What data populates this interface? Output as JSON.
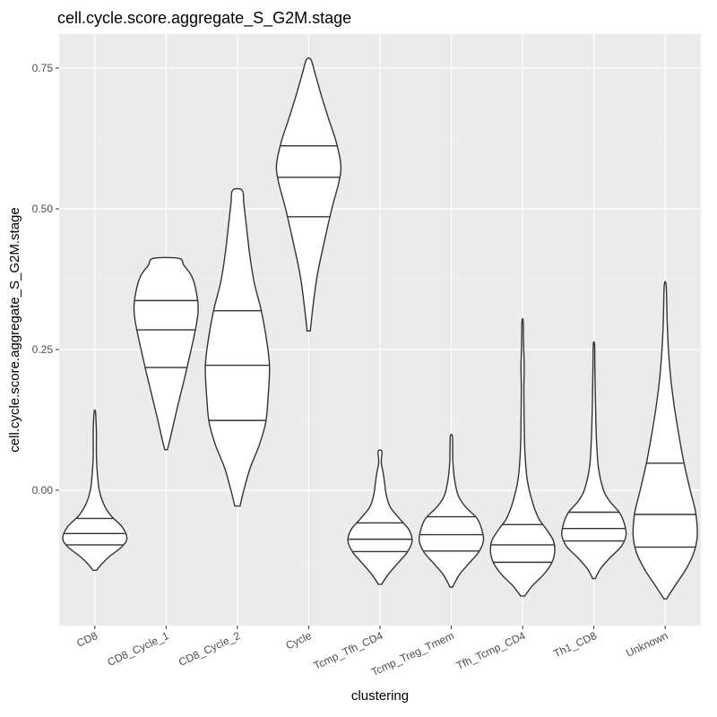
{
  "chart_data": {
    "type": "violin",
    "title": "cell.cycle.score.aggregate_S_G2M.stage",
    "xlabel": "clustering",
    "ylabel": "cell.cycle.score.aggregate_S_G2M.stage",
    "ylim": [
      -0.24,
      0.81
    ],
    "y_ticks": [
      0.0,
      0.25,
      0.5,
      0.75
    ],
    "y_tick_labels": [
      "0.00",
      "0.25",
      "0.50",
      "0.75"
    ],
    "categories": [
      "CD8",
      "CD8_Cycle_1",
      "CD8_Cycle_2",
      "Cycle",
      "Tcmp_Tfh_CD4",
      "Tcmp_Treg_Tmem",
      "Tfh_Tcmp_CD4",
      "Th1_CD8",
      "Unknown"
    ],
    "grid": true,
    "legend": "none",
    "colors": {
      "panel": "#ebebeb",
      "outline": "#333333",
      "fill": "#ffffff"
    },
    "violins": [
      {
        "min": -0.142,
        "max": 0.14,
        "q25": -0.097,
        "median": -0.077,
        "q75": -0.05,
        "profile": [
          [
            -0.142,
            0.06
          ],
          [
            -0.132,
            0.2
          ],
          [
            -0.118,
            0.45
          ],
          [
            -0.1,
            0.85
          ],
          [
            -0.085,
            1.0
          ],
          [
            -0.065,
            0.85
          ],
          [
            -0.045,
            0.5
          ],
          [
            -0.025,
            0.28
          ],
          [
            0.0,
            0.14
          ],
          [
            0.03,
            0.08
          ],
          [
            0.06,
            0.05
          ],
          [
            0.1,
            0.05
          ],
          [
            0.12,
            0.04
          ],
          [
            0.14,
            0.02
          ]
        ]
      },
      {
        "min": 0.072,
        "max": 0.412,
        "q25": 0.218,
        "median": 0.285,
        "q75": 0.337,
        "profile": [
          [
            0.072,
            0.04
          ],
          [
            0.09,
            0.12
          ],
          [
            0.13,
            0.28
          ],
          [
            0.17,
            0.45
          ],
          [
            0.21,
            0.62
          ],
          [
            0.25,
            0.78
          ],
          [
            0.29,
            0.93
          ],
          [
            0.32,
            1.0
          ],
          [
            0.35,
            0.95
          ],
          [
            0.38,
            0.8
          ],
          [
            0.4,
            0.55
          ],
          [
            0.412,
            0.4
          ]
        ]
      },
      {
        "min": -0.028,
        "max": 0.533,
        "q25": 0.124,
        "median": 0.222,
        "q75": 0.319,
        "profile": [
          [
            -0.028,
            0.08
          ],
          [
            0.0,
            0.2
          ],
          [
            0.04,
            0.4
          ],
          [
            0.08,
            0.68
          ],
          [
            0.12,
            0.88
          ],
          [
            0.16,
            0.95
          ],
          [
            0.22,
            1.0
          ],
          [
            0.27,
            0.9
          ],
          [
            0.32,
            0.74
          ],
          [
            0.37,
            0.52
          ],
          [
            0.42,
            0.38
          ],
          [
            0.47,
            0.28
          ],
          [
            0.51,
            0.2
          ],
          [
            0.533,
            0.15
          ]
        ]
      },
      {
        "min": 0.283,
        "max": 0.765,
        "q25": 0.486,
        "median": 0.556,
        "q75": 0.612,
        "profile": [
          [
            0.283,
            0.05
          ],
          [
            0.32,
            0.12
          ],
          [
            0.38,
            0.26
          ],
          [
            0.44,
            0.48
          ],
          [
            0.5,
            0.72
          ],
          [
            0.55,
            0.95
          ],
          [
            0.58,
            1.0
          ],
          [
            0.62,
            0.85
          ],
          [
            0.66,
            0.62
          ],
          [
            0.7,
            0.4
          ],
          [
            0.74,
            0.2
          ],
          [
            0.765,
            0.07
          ]
        ]
      },
      {
        "min": -0.167,
        "max": 0.069,
        "q25": -0.109,
        "median": -0.087,
        "q75": -0.058,
        "profile": [
          [
            -0.167,
            0.05
          ],
          [
            -0.15,
            0.25
          ],
          [
            -0.13,
            0.55
          ],
          [
            -0.11,
            0.85
          ],
          [
            -0.09,
            1.0
          ],
          [
            -0.07,
            0.9
          ],
          [
            -0.05,
            0.6
          ],
          [
            -0.03,
            0.32
          ],
          [
            -0.01,
            0.2
          ],
          [
            0.01,
            0.15
          ],
          [
            0.03,
            0.1
          ],
          [
            0.05,
            0.04
          ],
          [
            0.069,
            0.06
          ]
        ]
      },
      {
        "min": -0.172,
        "max": 0.097,
        "q25": -0.108,
        "median": -0.079,
        "q75": -0.047,
        "profile": [
          [
            -0.172,
            0.04
          ],
          [
            -0.15,
            0.25
          ],
          [
            -0.13,
            0.55
          ],
          [
            -0.11,
            0.85
          ],
          [
            -0.09,
            1.0
          ],
          [
            -0.07,
            0.95
          ],
          [
            -0.05,
            0.8
          ],
          [
            -0.03,
            0.45
          ],
          [
            -0.01,
            0.22
          ],
          [
            0.02,
            0.1
          ],
          [
            0.05,
            0.05
          ],
          [
            0.08,
            0.04
          ],
          [
            0.097,
            0.03
          ]
        ]
      },
      {
        "min": -0.188,
        "max": 0.3,
        "q25": -0.128,
        "median": -0.097,
        "q75": -0.061,
        "profile": [
          [
            -0.188,
            0.06
          ],
          [
            -0.17,
            0.3
          ],
          [
            -0.15,
            0.65
          ],
          [
            -0.13,
            0.9
          ],
          [
            -0.11,
            1.0
          ],
          [
            -0.09,
            0.96
          ],
          [
            -0.07,
            0.75
          ],
          [
            -0.05,
            0.5
          ],
          [
            -0.02,
            0.3
          ],
          [
            0.02,
            0.14
          ],
          [
            0.07,
            0.07
          ],
          [
            0.12,
            0.05
          ],
          [
            0.18,
            0.04
          ],
          [
            0.22,
            0.05
          ],
          [
            0.26,
            0.03
          ],
          [
            0.3,
            0.02
          ]
        ]
      },
      {
        "min": -0.157,
        "max": 0.259,
        "q25": -0.09,
        "median": -0.068,
        "q75": -0.039,
        "profile": [
          [
            -0.157,
            0.04
          ],
          [
            -0.14,
            0.2
          ],
          [
            -0.12,
            0.5
          ],
          [
            -0.1,
            0.85
          ],
          [
            -0.08,
            1.0
          ],
          [
            -0.06,
            0.95
          ],
          [
            -0.04,
            0.8
          ],
          [
            -0.02,
            0.5
          ],
          [
            0.0,
            0.3
          ],
          [
            0.04,
            0.14
          ],
          [
            0.09,
            0.08
          ],
          [
            0.15,
            0.05
          ],
          [
            0.22,
            0.03
          ],
          [
            0.259,
            0.02
          ]
        ]
      },
      {
        "min": -0.193,
        "max": 0.363,
        "q25": -0.101,
        "median": -0.043,
        "q75": 0.048,
        "profile": [
          [
            -0.193,
            0.04
          ],
          [
            -0.17,
            0.3
          ],
          [
            -0.14,
            0.65
          ],
          [
            -0.11,
            0.9
          ],
          [
            -0.08,
            1.0
          ],
          [
            -0.04,
            0.95
          ],
          [
            0.0,
            0.78
          ],
          [
            0.05,
            0.58
          ],
          [
            0.1,
            0.42
          ],
          [
            0.15,
            0.28
          ],
          [
            0.2,
            0.17
          ],
          [
            0.25,
            0.1
          ],
          [
            0.3,
            0.06
          ],
          [
            0.363,
            0.03
          ]
        ]
      }
    ]
  }
}
